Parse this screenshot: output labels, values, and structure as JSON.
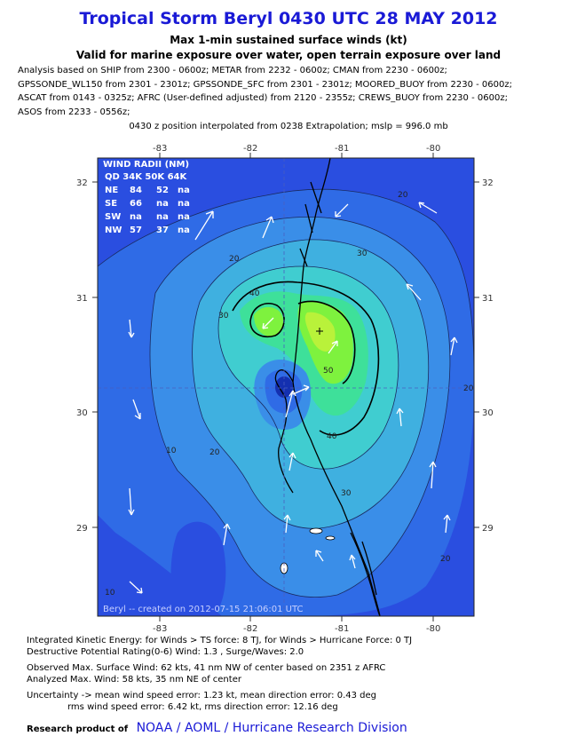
{
  "header": {
    "title": "Tropical Storm Beryl 0430 UTC 28 MAY 2012",
    "subtitle1": "Max 1-min sustained surface winds (kt)",
    "subtitle2": "Valid for marine exposure over water, open terrain exposure over land"
  },
  "analysis_lines": [
    "Analysis based on SHIP from 2300 - 0600z; METAR from 2232 - 0600z; CMAN from 2230 - 0600z;",
    "GPSSONDE_WL150 from 2301 - 2301z; GPSSONDE_SFC from 2301 - 2301z; MOORED_BUOY from 2230 - 0600z;",
    "ASCAT from 0143 - 0325z; AFRC (User-defined adjusted) from 2120 - 2355z; CREWS_BUOY from 2230 - 0600z;",
    "ASOS from 2233 - 0556z;"
  ],
  "interpolation_note": "0430 z position interpolated from 0238 Extrapolation; mslp = 996.0 mb",
  "map": {
    "lon_ticks": [
      "-83",
      "-82",
      "-81",
      "-80"
    ],
    "lat_ticks": [
      "32",
      "31",
      "30",
      "29"
    ],
    "stamp": "Beryl -- created on 2012-07-15 21:06:01 UTC",
    "colors": {
      "c0": "#2a4ee0",
      "c10": "#2f6be6",
      "c20": "#3a8ee8",
      "c30": "#3fb0e0",
      "c40": "#40cdd0",
      "c50": "#3ee09a",
      "c55": "#7ef23e",
      "c60": "#b9f23a",
      "center": "#1430b0"
    },
    "contour_labels": [
      "20",
      "30",
      "40",
      "50",
      "10",
      "20",
      "30",
      "40",
      "30",
      "20",
      "20",
      "10",
      "20"
    ],
    "wind_radii": {
      "title": "WIND RADII (NM)",
      "header": "QD 34K 50K 64K",
      "rows": [
        {
          "q": "NE",
          "k34": "84",
          "k50": "52",
          "k64": "na"
        },
        {
          "q": "SE",
          "k34": "66",
          "k50": "na",
          "k64": "na"
        },
        {
          "q": "SW",
          "k34": "na",
          "k50": "na",
          "k64": "na"
        },
        {
          "q": "NW",
          "k34": "57",
          "k50": "37",
          "k64": "na"
        }
      ]
    }
  },
  "footer": {
    "ike": "Integrated Kinetic Energy: for Winds > TS force: 8 TJ, for Winds > Hurricane Force: 0 TJ",
    "rating": "Destructive Potential Rating(0-6)   Wind: 1.3 , Surge/Waves: 2.0",
    "observed": "Observed Max. Surface Wind: 62 kts, 41 nm NW of center based on 2351 z AFRC",
    "analyzed": "Analyzed Max. Wind: 58 kts, 35 nm  NE of center",
    "uncertainty": "Uncertainty -> mean wind speed error: 1.23 kt, mean direction error: 0.43 deg",
    "rms": "rms wind speed error: 6.42 kt, rms direction error: 12.16 deg",
    "research_label": "Research product of",
    "org": "NOAA  /  AOML  /  Hurricane Research Division"
  }
}
